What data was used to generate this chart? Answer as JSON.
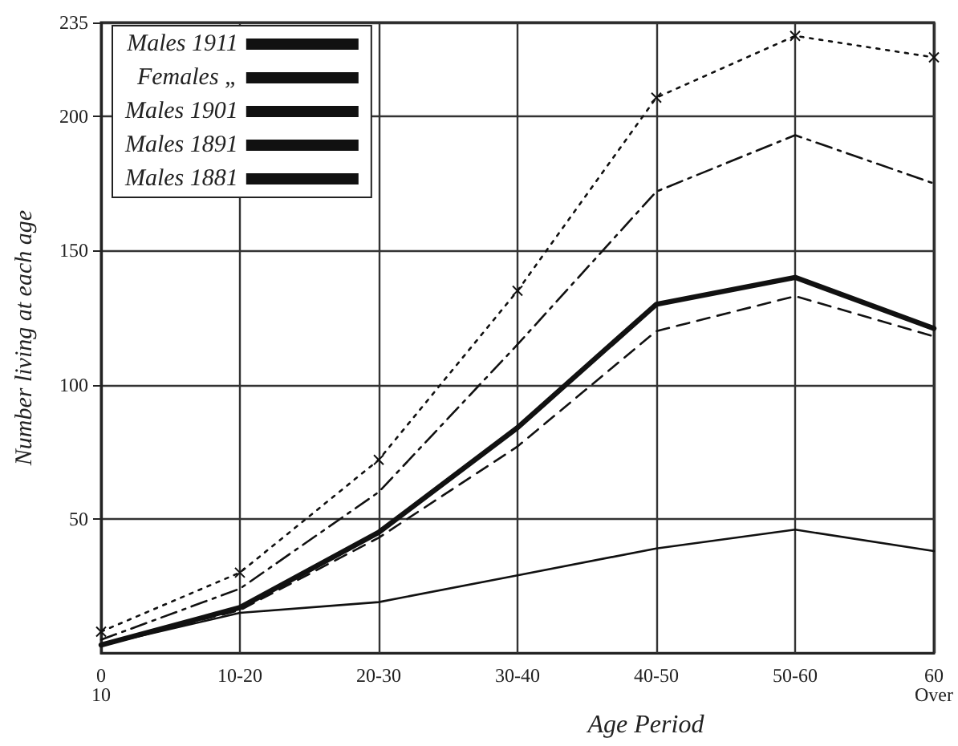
{
  "chart_data": {
    "type": "line",
    "xlabel": "Age Period",
    "ylabel": "Number living at each age",
    "categories": [
      "0\n10",
      "10-20",
      "20-30",
      "30-40",
      "40-50",
      "50-60",
      "60\nOver"
    ],
    "series": [
      {
        "name": "Males 1911",
        "color": "#111111",
        "line_style": "solid",
        "marker": "none",
        "values": [
          3,
          17,
          45,
          84,
          130,
          140,
          121
        ]
      },
      {
        "name": "Females „",
        "color": "#111111",
        "line_style": "solid",
        "marker": "none",
        "values": [
          3,
          15,
          19,
          29,
          39,
          46,
          38
        ]
      },
      {
        "name": "Males 1901",
        "color": "#111111",
        "line_style": "dashed",
        "marker": "none",
        "values": [
          3,
          16,
          43,
          77,
          120,
          133,
          118
        ]
      },
      {
        "name": "Males 1891",
        "color": "#111111",
        "line_style": "dashdot",
        "marker": "none",
        "values": [
          5,
          24,
          60,
          115,
          172,
          193,
          175
        ]
      },
      {
        "name": "Males 1881",
        "color": "#111111",
        "line_style": "dotted",
        "marker": "cross",
        "values": [
          8,
          30,
          72,
          135,
          207,
          230,
          222
        ]
      }
    ],
    "ylim": [
      0,
      235
    ],
    "yticks": [
      50,
      100,
      150,
      200,
      235
    ],
    "grid": true,
    "legend": "top left"
  }
}
